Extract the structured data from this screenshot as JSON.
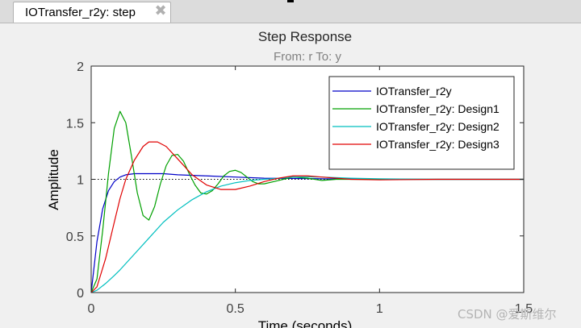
{
  "tab": {
    "label": "IOTransfer_r2y: step",
    "close_glyph": "✖"
  },
  "watermark": "CSDN @爱斯维尔",
  "chart_data": {
    "type": "line",
    "title": "Step Response",
    "subtitle": "From: r  To: y",
    "xlabel": "Time (seconds)",
    "ylabel": "Amplitude",
    "xlim": [
      0,
      1.5
    ],
    "ylim": [
      0,
      2
    ],
    "xticks": [
      0,
      0.5,
      1,
      1.5
    ],
    "xtick_labels": [
      "0",
      "0.5",
      "1",
      "1.5"
    ],
    "yticks": [
      0,
      0.5,
      1,
      1.5,
      2
    ],
    "ytick_labels": [
      "0",
      "0.5",
      "1",
      "1.5",
      "2"
    ],
    "grid": false,
    "legend_position": "top-right",
    "reference_line": {
      "y": 1,
      "style": "dotted",
      "color": "#000000"
    },
    "series": [
      {
        "name": "IOTransfer_r2y",
        "color": "#0000c8",
        "x": [
          0,
          0.02,
          0.04,
          0.06,
          0.08,
          0.1,
          0.12,
          0.15,
          0.2,
          0.25,
          0.3,
          0.4,
          0.5,
          0.6,
          0.8,
          1.0,
          1.2,
          1.5
        ],
        "y": [
          0,
          0.45,
          0.74,
          0.9,
          0.98,
          1.02,
          1.04,
          1.05,
          1.05,
          1.05,
          1.04,
          1.03,
          1.02,
          1.01,
          1.005,
          1.0,
          1.0,
          1.0
        ]
      },
      {
        "name": "IOTransfer_r2y: Design1",
        "color": "#00a000",
        "x": [
          0,
          0.02,
          0.04,
          0.06,
          0.08,
          0.1,
          0.12,
          0.14,
          0.16,
          0.18,
          0.2,
          0.22,
          0.24,
          0.26,
          0.28,
          0.3,
          0.32,
          0.34,
          0.36,
          0.38,
          0.4,
          0.42,
          0.44,
          0.46,
          0.48,
          0.5,
          0.52,
          0.54,
          0.56,
          0.58,
          0.6,
          0.65,
          0.7,
          0.75,
          0.8,
          0.85,
          0.9,
          1.0,
          1.2,
          1.5
        ],
        "y": [
          0,
          0.12,
          0.55,
          1.05,
          1.45,
          1.6,
          1.5,
          1.2,
          0.88,
          0.68,
          0.64,
          0.76,
          0.96,
          1.12,
          1.21,
          1.22,
          1.16,
          1.05,
          0.95,
          0.88,
          0.87,
          0.9,
          0.96,
          1.03,
          1.07,
          1.08,
          1.06,
          1.02,
          0.98,
          0.96,
          0.96,
          0.99,
          1.02,
          1.01,
          0.99,
          1.0,
          1.0,
          1.0,
          1.0,
          1.0
        ]
      },
      {
        "name": "IOTransfer_r2y: Design2",
        "color": "#00bfbf",
        "x": [
          0,
          0.02,
          0.05,
          0.08,
          0.1,
          0.15,
          0.2,
          0.25,
          0.3,
          0.35,
          0.4,
          0.45,
          0.5,
          0.55,
          0.6,
          0.65,
          0.7,
          0.75,
          0.8,
          0.9,
          1.0,
          1.2,
          1.5
        ],
        "y": [
          0,
          0.02,
          0.08,
          0.15,
          0.2,
          0.34,
          0.48,
          0.62,
          0.73,
          0.82,
          0.89,
          0.94,
          0.97,
          0.99,
          1.0,
          1.01,
          1.02,
          1.02,
          1.02,
          1.01,
          1.005,
          1.0,
          1.0
        ]
      },
      {
        "name": "IOTransfer_r2y: Design3",
        "color": "#e00000",
        "x": [
          0,
          0.02,
          0.05,
          0.08,
          0.1,
          0.12,
          0.15,
          0.18,
          0.2,
          0.23,
          0.26,
          0.3,
          0.35,
          0.4,
          0.45,
          0.5,
          0.55,
          0.6,
          0.65,
          0.7,
          0.75,
          0.8,
          0.9,
          1.0,
          1.2,
          1.5
        ],
        "y": [
          0,
          0.05,
          0.3,
          0.62,
          0.83,
          1.0,
          1.17,
          1.29,
          1.33,
          1.33,
          1.29,
          1.18,
          1.04,
          0.95,
          0.91,
          0.91,
          0.94,
          0.98,
          1.01,
          1.03,
          1.03,
          1.02,
          1.0,
          0.995,
          1.0,
          1.0
        ]
      }
    ]
  }
}
